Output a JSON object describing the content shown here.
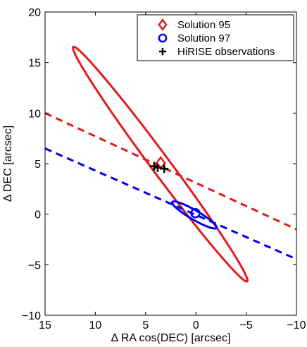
{
  "chart_data": {
    "type": "line",
    "title": "",
    "xlabel": "Δ RA cos(DEC) [arcsec]",
    "ylabel": "Δ DEC [arcsec]",
    "xlim": [
      15,
      -10
    ],
    "ylim": [
      -10,
      20
    ],
    "x_reversed": true,
    "xticks": [
      15,
      10,
      5,
      0,
      -5,
      -10
    ],
    "yticks": [
      20,
      15,
      10,
      5,
      0,
      -5,
      -10
    ],
    "xtick_labels": [
      "15",
      "10",
      "5",
      "0",
      "−5",
      "−10"
    ],
    "ytick_labels": [
      "20",
      "15",
      "10",
      "5",
      "0",
      "−5",
      "−10"
    ],
    "grid": false,
    "legend_position": "top-right",
    "legend": [
      {
        "label": "Solution 95",
        "marker": "diamond",
        "color": "#e31a1c"
      },
      {
        "label": "Solution 97",
        "marker": "circle",
        "color": "#0000ee"
      },
      {
        "label": "HiRISE observations",
        "marker": "plus",
        "color": "#000000"
      }
    ],
    "colors": {
      "solution95": "#e31a1c",
      "solution97": "#0000ee",
      "hirise": "#000000"
    },
    "series": [
      {
        "kind": "ellipse",
        "color": "#e31a1c",
        "center": [
          3.55,
          4.95
        ],
        "tips": [
          [
            12.2,
            16.55
          ],
          [
            -5.1,
            -6.65
          ]
        ],
        "semi_minor": 0.92
      },
      {
        "kind": "ellipse",
        "color": "#0000ee",
        "center": [
          0.15,
          -0.08
        ],
        "tips": [
          [
            2.35,
            1.2
          ],
          [
            -2.05,
            -1.36
          ]
        ],
        "semi_minor": 0.46
      },
      {
        "kind": "dashed-line",
        "color": "#e31a1c",
        "points": [
          [
            15,
            10.0
          ],
          [
            -10,
            -1.5
          ]
        ]
      },
      {
        "kind": "dashed-line",
        "color": "#0000ee",
        "points": [
          [
            15,
            6.5
          ],
          [
            -10,
            -4.45
          ]
        ]
      },
      {
        "kind": "marker",
        "name": "Solution 95",
        "marker": "diamond",
        "color": "#e31a1c",
        "points": [
          [
            3.5,
            5.05
          ]
        ]
      },
      {
        "kind": "marker",
        "name": "Solution 97",
        "marker": "circle",
        "color": "#0000ee",
        "points": [
          [
            0.05,
            0.1
          ]
        ]
      },
      {
        "kind": "marker",
        "name": "HiRISE observations",
        "marker": "plus",
        "color": "#000000",
        "points": [
          [
            4.15,
            4.75
          ],
          [
            3.8,
            4.6
          ],
          [
            3.15,
            4.5
          ]
        ]
      }
    ]
  }
}
